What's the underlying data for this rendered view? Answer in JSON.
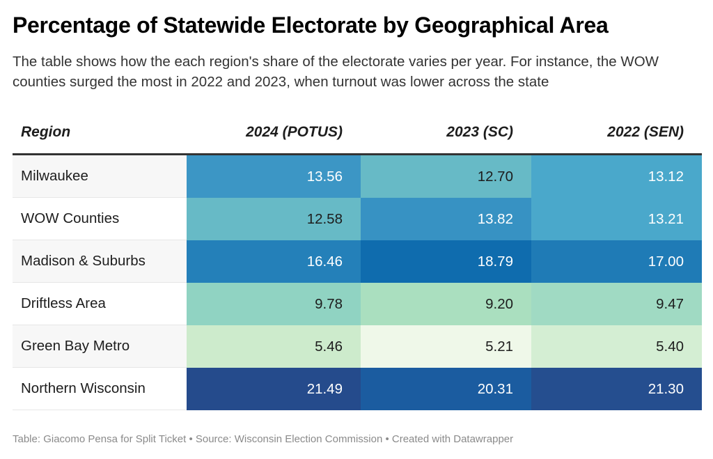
{
  "header": {
    "title": "Percentage of Statewide Electorate by Geographical Area",
    "subtitle": "The table shows how the each region's share of the electorate varies per year. For instance, the WOW counties surged the most in 2022 and 2023, when turnout was lower across the state"
  },
  "footer": {
    "text": "Table: Giacomo Pensa for Split Ticket • Source: Wisconsin Election Commission • Created with Datawrapper"
  },
  "chart_data": {
    "type": "table",
    "title": "Percentage of Statewide Electorate by Geographical Area",
    "columns": [
      "Region",
      "2024 (POTUS)",
      "2023 (SC)",
      "2022 (SEN)"
    ],
    "rows": [
      {
        "region": "Milwaukee",
        "values": [
          "13.56",
          "12.70",
          "13.12"
        ],
        "colors": [
          "#3c96c5",
          "#67bac6",
          "#4aa8cb"
        ],
        "text_colors": [
          "#ffffff",
          "#1d1d1d",
          "#ffffff"
        ]
      },
      {
        "region": "WOW Counties",
        "values": [
          "12.58",
          "13.82",
          "13.21"
        ],
        "colors": [
          "#67bac6",
          "#3792c3",
          "#4aa8cb"
        ],
        "text_colors": [
          "#1d1d1d",
          "#ffffff",
          "#ffffff"
        ]
      },
      {
        "region": "Madison & Suburbs",
        "values": [
          "16.46",
          "18.79",
          "17.00"
        ],
        "colors": [
          "#2480b9",
          "#0f6cae",
          "#1f7bb6"
        ],
        "text_colors": [
          "#ffffff",
          "#ffffff",
          "#ffffff"
        ]
      },
      {
        "region": "Driftless Area",
        "values": [
          "9.78",
          "9.20",
          "9.47"
        ],
        "colors": [
          "#90d3c2",
          "#aadfbf",
          "#a0dac3"
        ],
        "text_colors": [
          "#1d1d1d",
          "#1d1d1d",
          "#1d1d1d"
        ]
      },
      {
        "region": "Green Bay Metro",
        "values": [
          "5.46",
          "5.21",
          "5.40"
        ],
        "colors": [
          "#cdebcc",
          "#eff8e9",
          "#d4eed3"
        ],
        "text_colors": [
          "#1d1d1d",
          "#1d1d1d",
          "#1d1d1d"
        ]
      },
      {
        "region": "Northern Wisconsin",
        "values": [
          "21.49",
          "20.31",
          "21.30"
        ],
        "colors": [
          "#254b8c",
          "#1b5ca0",
          "#254e8f"
        ],
        "text_colors": [
          "#ffffff",
          "#ffffff",
          "#ffffff"
        ]
      }
    ]
  }
}
